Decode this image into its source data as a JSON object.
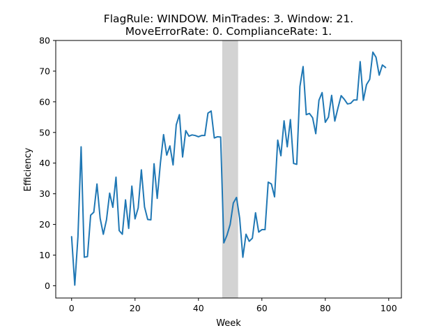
{
  "chart_data": {
    "type": "line",
    "title_lines": [
      "FlagRule: WINDOW. MinTrades: 3. Window: 21.",
      "MoveErrorRate: 0. ComplianceRate: 1."
    ],
    "xlabel": "Week",
    "ylabel": "Efficiency",
    "xlim": [
      -5,
      104
    ],
    "ylim": [
      -4,
      80
    ],
    "xticks": [
      0,
      20,
      40,
      60,
      80,
      100
    ],
    "yticks": [
      0,
      10,
      20,
      30,
      40,
      50,
      60,
      70,
      80
    ],
    "grid": false,
    "shaded_span": {
      "x0": 47.5,
      "x1": 52.5,
      "color": "#d3d3d3"
    },
    "line_color": "#1f77b4",
    "x": [
      0,
      1,
      2,
      3,
      4,
      5,
      6,
      7,
      8,
      9,
      10,
      11,
      12,
      13,
      14,
      15,
      16,
      17,
      18,
      19,
      20,
      21,
      22,
      23,
      24,
      25,
      26,
      27,
      28,
      29,
      30,
      31,
      32,
      33,
      34,
      35,
      36,
      37,
      38,
      39,
      40,
      41,
      42,
      43,
      44,
      45,
      46,
      47,
      48,
      49,
      50,
      51,
      52,
      53,
      54,
      55,
      56,
      57,
      58,
      59,
      60,
      61,
      62,
      63,
      64,
      65,
      66,
      67,
      68,
      69,
      70,
      71,
      72,
      73,
      74,
      75,
      76,
      77,
      78,
      79,
      80,
      81,
      82,
      83,
      84,
      85,
      86,
      87,
      88,
      89,
      90,
      91,
      92,
      93,
      94,
      95,
      96,
      97,
      98,
      99
    ],
    "y": [
      16,
      0.2,
      16,
      45.3,
      9.3,
      9.5,
      23,
      24,
      33.2,
      22,
      16.8,
      21.5,
      30.2,
      25.6,
      35.4,
      18,
      16.8,
      28,
      18.7,
      32.5,
      21.8,
      25.4,
      37.8,
      25.7,
      21.6,
      21.5,
      39.8,
      28.5,
      40,
      49.3,
      42.6,
      45.6,
      39.4,
      52.5,
      55.8,
      42,
      50.6,
      48.8,
      49.2,
      49,
      48.6,
      49,
      49,
      56.3,
      57,
      48.2,
      48.6,
      48.5,
      14,
      16.5,
      20,
      27,
      28.8,
      22,
      9.3,
      16.8,
      14.5,
      15.5,
      23.8,
      17.5,
      18.3,
      18.3,
      33.8,
      33.2,
      29,
      47.5,
      42.4,
      53.8,
      45.3,
      54.2,
      39.9,
      39.6,
      65,
      71.5,
      55.8,
      56.2,
      54.8,
      49.6,
      60.5,
      63,
      53.3,
      55,
      62.1,
      53.7,
      58,
      62,
      60.8,
      59.3,
      59.5,
      60.6,
      60.6,
      73.1,
      60.5,
      65.6,
      67.3,
      76.2,
      74.5,
      68.7,
      72,
      71.2
    ]
  }
}
